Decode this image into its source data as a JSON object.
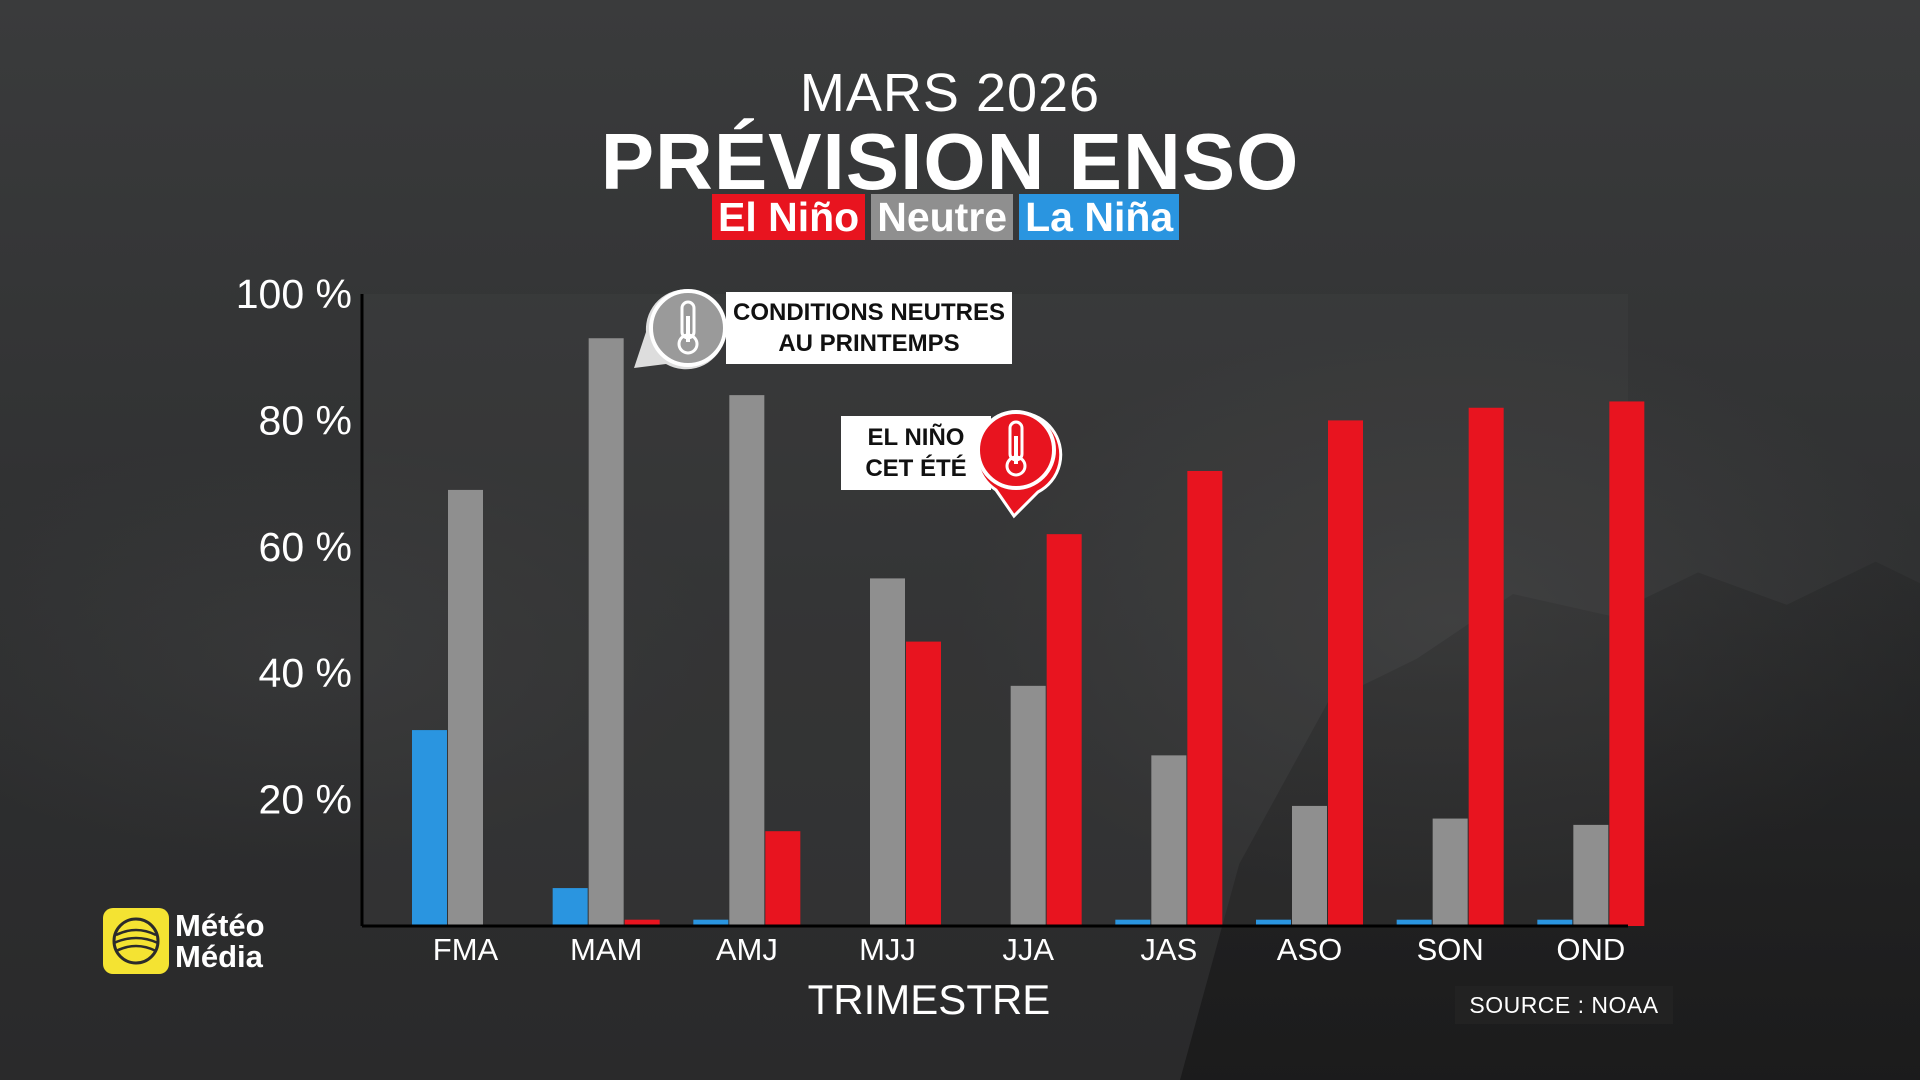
{
  "header": {
    "year_label": "MARS 2026",
    "title": "PRÉVISION ENSO"
  },
  "legend": [
    {
      "label": "El Niño",
      "color": "#e8141f"
    },
    {
      "label": "Neutre",
      "color": "#8f8f8f"
    },
    {
      "label": "La Niña",
      "color": "#2a95e0"
    }
  ],
  "callouts": {
    "neutral": {
      "line1": "CONDITIONS NEUTRES",
      "line2": "AU PRINTEMPS",
      "icon": "thermometer-icon"
    },
    "elnino": {
      "line1": "EL NIÑO",
      "line2": "CET ÉTÉ",
      "icon": "thermometer-icon"
    }
  },
  "chart_data": {
    "type": "bar",
    "categories": [
      "FMA",
      "MAM",
      "AMJ",
      "MJJ",
      "JJA",
      "JAS",
      "ASO",
      "SON",
      "OND"
    ],
    "series": [
      {
        "name": "La Niña",
        "color": "#2a95e0",
        "values": [
          31,
          6,
          1,
          0,
          0,
          1,
          1,
          1,
          1
        ]
      },
      {
        "name": "Neutre",
        "color": "#8f8f8f",
        "values": [
          69,
          93,
          84,
          55,
          38,
          27,
          19,
          17,
          16
        ]
      },
      {
        "name": "El Niño",
        "color": "#e8141f",
        "values": [
          0,
          1,
          15,
          45,
          62,
          72,
          80,
          82,
          83
        ]
      }
    ],
    "ytick_labels": [
      "20 %",
      "40 %",
      "60 %",
      "80 %",
      "100 %"
    ],
    "ytick_values": [
      20,
      40,
      60,
      80,
      100
    ],
    "xlabel": "TRIMESTRE",
    "ylim": [
      0,
      100
    ]
  },
  "logo": {
    "line1": "Météo",
    "line2": "Média"
  },
  "source": "SOURCE : NOAA"
}
